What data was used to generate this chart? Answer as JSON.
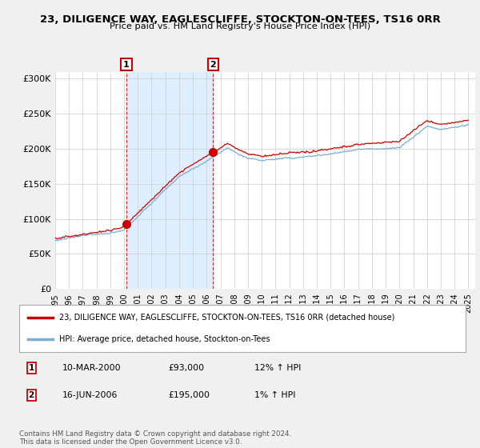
{
  "title": "23, DILIGENCE WAY, EAGLESCLIFFE, STOCKTON-ON-TEES, TS16 0RR",
  "subtitle": "Price paid vs. HM Land Registry's House Price Index (HPI)",
  "ylabel_ticks": [
    "£0",
    "£50K",
    "£100K",
    "£150K",
    "£200K",
    "£250K",
    "£300K"
  ],
  "ytick_values": [
    0,
    50000,
    100000,
    150000,
    200000,
    250000,
    300000
  ],
  "ylim": [
    0,
    310000
  ],
  "sale1_year": 2000.17,
  "sale1_price": 93000,
  "sale2_year": 2006.46,
  "sale2_price": 195000,
  "legend_line1": "23, DILIGENCE WAY, EAGLESCLIFFE, STOCKTON-ON-TEES, TS16 0RR (detached house)",
  "legend_line2": "HPI: Average price, detached house, Stockton-on-Tees",
  "table_row1": [
    "1",
    "10-MAR-2000",
    "£93,000",
    "12% ↑ HPI"
  ],
  "table_row2": [
    "2",
    "16-JUN-2006",
    "£195,000",
    "1% ↑ HPI"
  ],
  "footer": "Contains HM Land Registry data © Crown copyright and database right 2024.\nThis data is licensed under the Open Government Licence v3.0.",
  "line_color_red": "#cc0000",
  "line_color_blue": "#7aadd4",
  "shade_color": "#ddeeff",
  "background_color": "#f0f0f0",
  "plot_bg_color": "#ffffff"
}
